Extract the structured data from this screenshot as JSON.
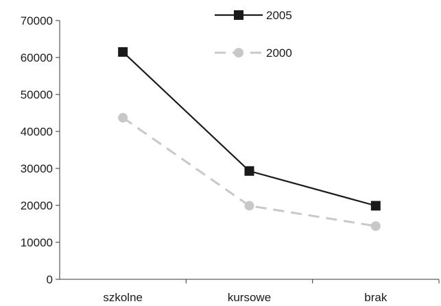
{
  "chart_data": {
    "type": "line",
    "categories": [
      "szkolne",
      "kursowe",
      "brak"
    ],
    "ylim": [
      0,
      70000
    ],
    "yticks": [
      0,
      10000,
      20000,
      30000,
      40000,
      50000,
      60000,
      70000
    ],
    "grid": false,
    "legend_position": "top-center",
    "series": [
      {
        "name": "2005",
        "values": [
          61500,
          29300,
          19900
        ],
        "color": "#1a1a1a",
        "marker": "square",
        "line_style": "solid"
      },
      {
        "name": "2000",
        "values": [
          43700,
          19900,
          14400
        ],
        "color": "#c8c8c8",
        "marker": "circle",
        "line_style": "dashed"
      }
    ]
  }
}
